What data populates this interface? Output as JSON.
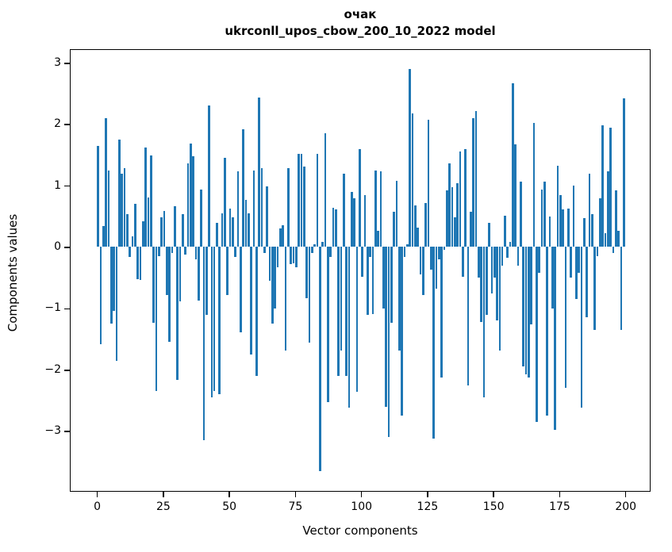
{
  "title": {
    "line1": "очак",
    "line2": "ukrconll_upos_cbow_200_10_2022 model"
  },
  "chart_data": {
    "type": "bar",
    "title": "очак",
    "subtitle": "ukrconll_upos_cbow_200_10_2022 model",
    "xlabel": "Vector components",
    "ylabel": "Components values",
    "bar_color": "#1f77b4",
    "n_components": 200,
    "x_ticks": [
      0,
      25,
      50,
      75,
      100,
      125,
      150,
      175,
      200
    ],
    "y_ticks": [
      3,
      2,
      1,
      0,
      -1,
      -2,
      -3
    ],
    "xlim": [
      -10.4,
      209.4
    ],
    "ylim": [
      -3.98,
      3.23
    ],
    "grid": false,
    "legend": false,
    "values": [
      1.65,
      -1.58,
      0.34,
      2.1,
      1.25,
      -1.25,
      -1.04,
      -1.85,
      1.75,
      1.19,
      1.28,
      0.54,
      -0.16,
      0.18,
      0.71,
      -0.52,
      -0.54,
      0.42,
      1.62,
      0.81,
      1.49,
      -1.24,
      -2.35,
      -0.15,
      0.49,
      0.59,
      -0.78,
      -1.55,
      -0.1,
      0.66,
      -2.16,
      -0.89,
      0.53,
      -0.12,
      1.36,
      1.68,
      1.48,
      -0.2,
      -0.87,
      0.94,
      -3.15,
      -1.11,
      2.3,
      -2.45,
      -2.35,
      0.4,
      -2.4,
      0.55,
      1.45,
      -0.78,
      0.62,
      0.49,
      -0.16,
      1.24,
      -1.39,
      1.92,
      0.77,
      0.55,
      -1.75,
      1.25,
      -2.1,
      2.43,
      1.28,
      -0.1,
      0.99,
      -0.55,
      -1.25,
      -1.0,
      -0.33,
      0.3,
      0.35,
      -1.69,
      1.28,
      -0.28,
      -0.27,
      -0.33,
      1.52,
      1.52,
      1.31,
      -0.83,
      -1.56,
      -0.1,
      0.05,
      1.52,
      -3.65,
      0.08,
      1.85,
      -2.53,
      -0.16,
      0.64,
      0.61,
      -2.1,
      -1.69,
      1.19,
      -2.1,
      -2.62,
      0.9,
      0.79,
      -2.36,
      1.59,
      -0.48,
      0.84,
      -1.11,
      -0.16,
      -1.09,
      1.25,
      0.27,
      1.24,
      -1.0,
      -2.6,
      -3.1,
      -1.24,
      0.57,
      1.08,
      -1.69,
      -2.75,
      -0.16,
      0.05,
      2.9,
      2.18,
      0.68,
      0.31,
      -0.44,
      -0.78,
      0.72,
      2.08,
      -0.37,
      -3.12,
      -0.68,
      -0.2,
      -2.12,
      -0.05,
      0.93,
      1.36,
      0.97,
      0.49,
      1.04,
      1.56,
      -0.48,
      1.59,
      -2.25,
      0.57,
      2.1,
      2.21,
      -0.5,
      -1.22,
      -2.45,
      -1.1,
      0.4,
      -0.76,
      -0.5,
      -1.2,
      -1.69,
      -0.3,
      0.51,
      -0.18,
      0.08,
      2.67,
      1.67,
      -0.3,
      1.06,
      -1.95,
      -2.08,
      -2.12,
      -1.26,
      2.02,
      -2.85,
      -0.42,
      0.94,
      1.06,
      -2.74,
      0.5,
      -1.0,
      -2.98,
      1.33,
      0.84,
      0.61,
      -2.3,
      0.63,
      -0.5,
      1.0,
      -0.85,
      -0.42,
      -2.62,
      0.47,
      -1.15,
      1.2,
      0.53,
      -1.35,
      -0.15,
      0.79,
      1.98,
      0.23,
      1.24,
      1.95,
      -0.1,
      0.92,
      0.27,
      -1.35,
      2.42
    ]
  }
}
